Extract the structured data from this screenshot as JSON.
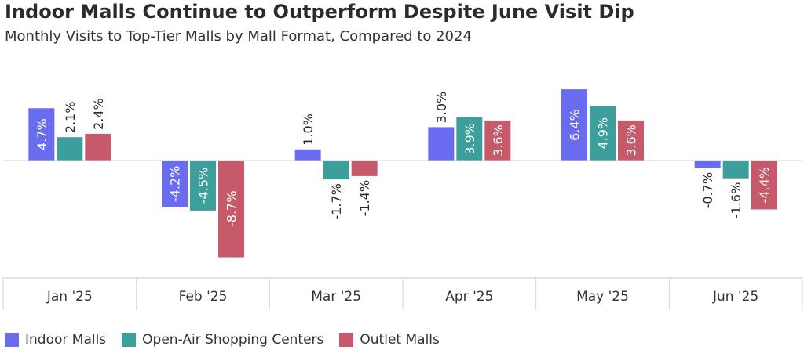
{
  "header": {
    "title": "Indoor Malls Continue to Outperform Despite June Visit Dip",
    "subtitle": "Monthly Visits to Top-Tier Malls by Mall Format, Compared to 2024"
  },
  "chart_data": {
    "type": "bar",
    "categories": [
      "Jan '25",
      "Feb '25",
      "Mar '25",
      "Apr '25",
      "May '25",
      "Jun '25"
    ],
    "series": [
      {
        "name": "Indoor Malls",
        "color": "#6a6cf0",
        "values": [
          4.7,
          -4.2,
          1.0,
          3.0,
          6.4,
          -0.7
        ],
        "labels": [
          "4.7%",
          "-4.2%",
          "1.0%",
          "3.0%",
          "6.4%",
          "-0.7%"
        ]
      },
      {
        "name": "Open-Air Shopping Centers",
        "color": "#3d9f9b",
        "values": [
          2.1,
          -4.5,
          -1.7,
          3.9,
          4.9,
          -1.6
        ],
        "labels": [
          "2.1%",
          "-4.5%",
          "-1.7%",
          "3.9%",
          "4.9%",
          "-1.6%"
        ]
      },
      {
        "name": "Outlet Malls",
        "color": "#c65a6b",
        "values": [
          2.4,
          -8.7,
          -1.4,
          3.6,
          3.6,
          -4.4
        ],
        "labels": [
          "2.4%",
          "-8.7%",
          "-1.4%",
          "3.6%",
          "3.6%",
          "-4.4%"
        ]
      }
    ],
    "ylim": [
      -10.5,
      8.5
    ],
    "grid": false,
    "legend_position": "bottom-left"
  }
}
